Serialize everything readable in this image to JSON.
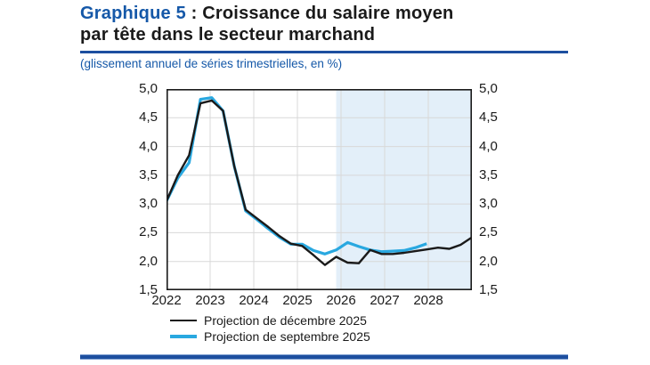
{
  "colors": {
    "accent": "#1558a8",
    "rule": "#1d4f9f",
    "grid": "#d8d8d8",
    "plot_border": "#1a1a1a",
    "projection_shade": "#e3eff9",
    "line_december": "#1a1a1a",
    "line_september": "#29a8e0"
  },
  "header": {
    "title_accent": "Graphique 5",
    "title_line1_rest": " : Croissance du salaire moyen",
    "title_line2": "par tête dans le secteur marchand",
    "subtitle": "(glissement annuel de séries trimestrielles, en %)"
  },
  "chart_data": {
    "type": "line",
    "title": "Graphique 5 : Croissance du salaire moyen par tête dans le secteur marchand",
    "subtitle": "(glissement annuel de séries trimestrielles, en %)",
    "x_year_labels": [
      "2022",
      "2023",
      "2024",
      "2025",
      "2026",
      "2027",
      "2028"
    ],
    "quarters": [
      "2022-T1",
      "2022-T2",
      "2022-T3",
      "2022-T4",
      "2023-T1",
      "2023-T2",
      "2023-T3",
      "2023-T4",
      "2024-T1",
      "2024-T2",
      "2024-T3",
      "2024-T4",
      "2025-T1",
      "2025-T2",
      "2025-T3",
      "2025-T4",
      "2026-T1",
      "2026-T2",
      "2026-T3",
      "2026-T4",
      "2027-T1",
      "2027-T2",
      "2027-T3",
      "2027-T4",
      "2028-T1",
      "2028-T2",
      "2028-T3",
      "2028-T4"
    ],
    "points_total": 28,
    "ylim": [
      1.5,
      5.0
    ],
    "ytick_values": [
      1.5,
      2.0,
      2.5,
      3.0,
      3.5,
      4.0,
      4.5,
      5.0
    ],
    "ytick_labels": [
      "1,5",
      "2,0",
      "2,5",
      "3,0",
      "3,5",
      "4,0",
      "4,5",
      "5,0"
    ],
    "grid": true,
    "legend_position": "bottom-left",
    "projection_shade": {
      "start_index": 15,
      "start_quarter": "2025-T4"
    },
    "series": [
      {
        "id": "decembre-2025",
        "name": "Projection de décembre 2025",
        "color": "#1a1a1a",
        "stroke_width": 2.4,
        "values": [
          3.05,
          3.5,
          3.85,
          4.75,
          4.8,
          4.62,
          3.65,
          2.9,
          2.75,
          2.6,
          2.44,
          2.31,
          2.27,
          2.11,
          1.94,
          2.08,
          1.98,
          1.97,
          2.2,
          2.13,
          2.13,
          2.15,
          2.18,
          2.21,
          2.24,
          2.22,
          2.29,
          2.42
        ]
      },
      {
        "id": "septembre-2025",
        "name": "Projection de septembre 2025",
        "color": "#29a8e0",
        "stroke_width": 3.2,
        "values": [
          3.05,
          3.45,
          3.72,
          4.82,
          4.85,
          4.62,
          3.65,
          2.88,
          2.73,
          2.57,
          2.42,
          2.3,
          2.3,
          2.19,
          2.13,
          2.2,
          2.33,
          2.26,
          2.2,
          2.17,
          2.18,
          2.19,
          2.24,
          2.31
        ]
      }
    ]
  }
}
